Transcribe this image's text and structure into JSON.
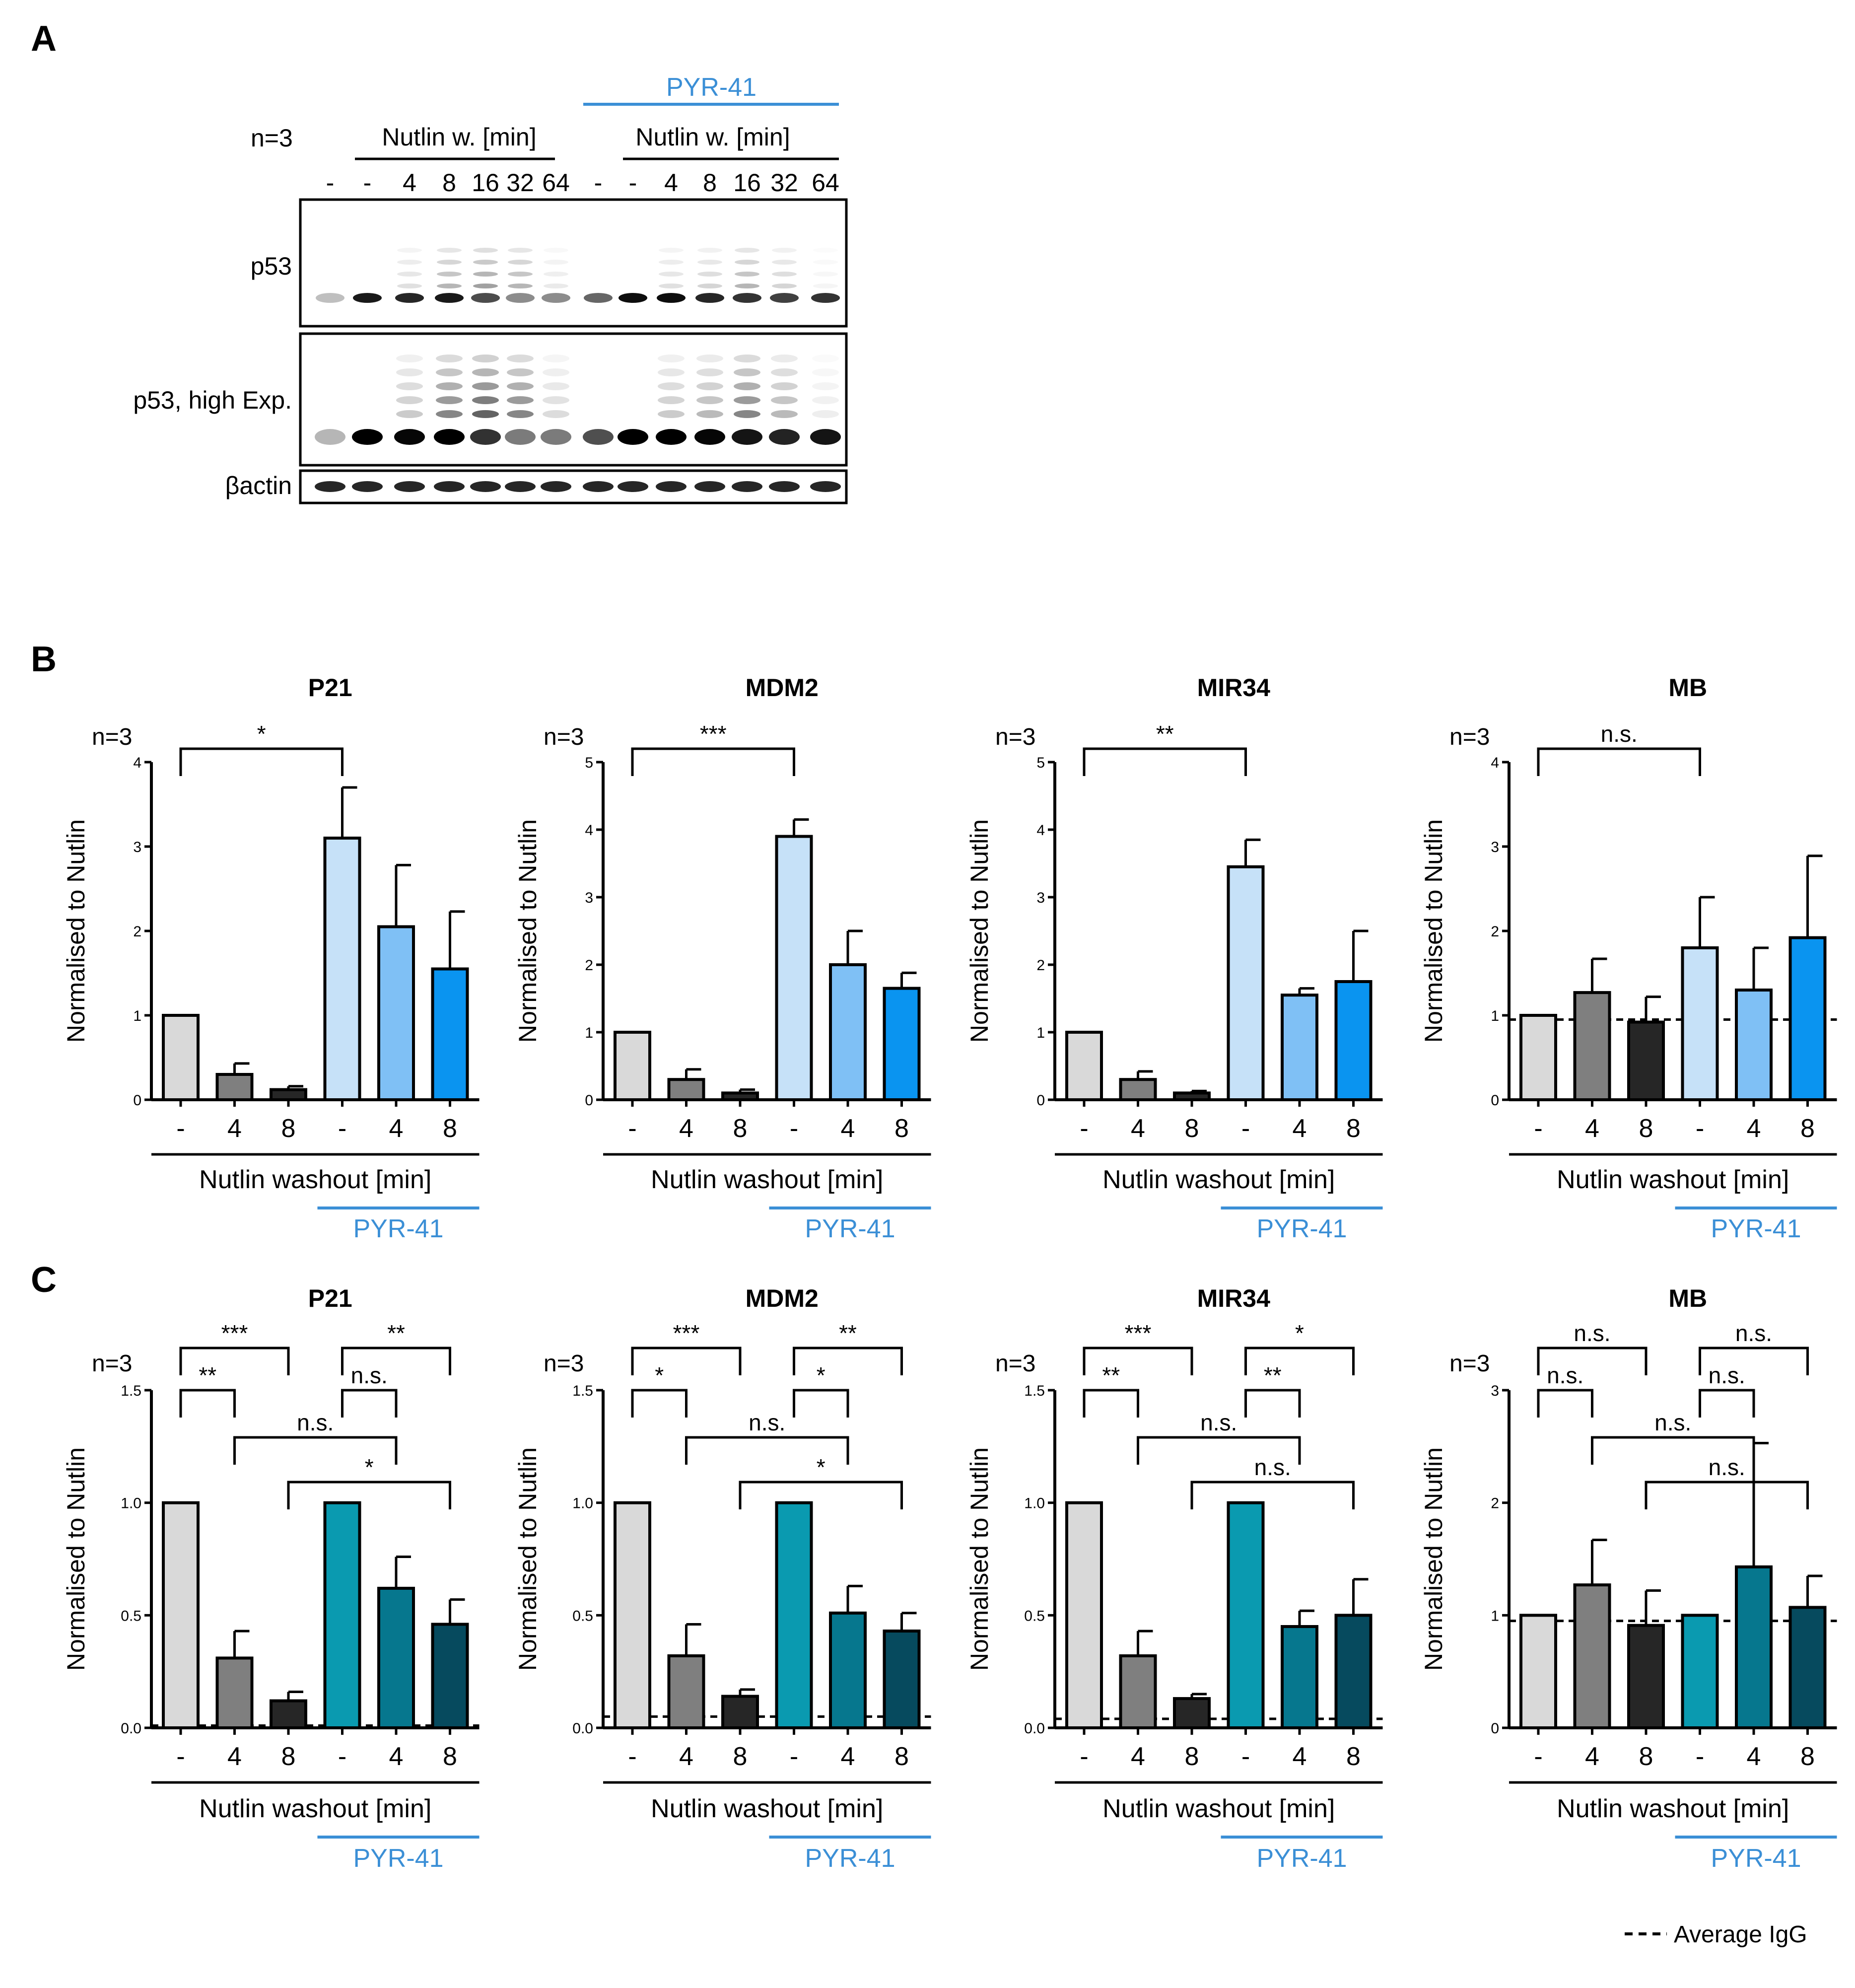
{
  "panels": {
    "a": "A",
    "b": "B",
    "c": "C"
  },
  "blot": {
    "n_label": "n=3",
    "pyr_label": "PYR-41",
    "group_label": "Nutlin w. [min]",
    "lanes": [
      "-",
      "-",
      "4",
      "8",
      "16",
      "32",
      "64",
      "-",
      "-",
      "4",
      "8",
      "16",
      "32",
      "64"
    ],
    "row_labels": [
      "p53",
      "p53, high Exp.",
      "βactin"
    ]
  },
  "common": {
    "n_label": "n=3",
    "ylabel": "Normalised to Nutlin",
    "xlabel": "Nutlin washout [min]",
    "pyr_label": "PYR-41",
    "categories": [
      "-",
      "4",
      "8",
      "-",
      "4",
      "8"
    ]
  },
  "legend": {
    "label": "Average IgG"
  },
  "colors": {
    "b": [
      "#d9d9d9",
      "#7f7f7f",
      "#262626",
      "#c6e1f8",
      "#7fc0f5",
      "#0a94f0"
    ],
    "c": [
      "#d9d9d9",
      "#7f7f7f",
      "#262626",
      "#0a9ab0",
      "#06778e",
      "#064a5e"
    ],
    "pyr_line": "#3b8fd6"
  },
  "chart_data": [
    {
      "type": "bar",
      "panel": "B",
      "title": "P21",
      "ylim": [
        0,
        4
      ],
      "yticks": [
        "0",
        "1",
        "2",
        "3",
        "4"
      ],
      "values": [
        1.0,
        0.3,
        0.12,
        3.1,
        2.05,
        1.55
      ],
      "errors": [
        0,
        0.13,
        0.04,
        0.6,
        0.73,
        0.68
      ],
      "igg": null,
      "sig": [
        {
          "label": "*",
          "from": 0,
          "to": 3
        }
      ]
    },
    {
      "type": "bar",
      "panel": "B",
      "title": "MDM2",
      "ylim": [
        0,
        5
      ],
      "yticks": [
        "0",
        "1",
        "2",
        "3",
        "4",
        "5"
      ],
      "values": [
        1.0,
        0.3,
        0.1,
        3.9,
        2.0,
        1.65
      ],
      "errors": [
        0,
        0.15,
        0.05,
        0.25,
        0.5,
        0.23
      ],
      "igg": 0.0,
      "sig": [
        {
          "label": "***",
          "from": 0,
          "to": 3
        }
      ]
    },
    {
      "type": "bar",
      "panel": "B",
      "title": "MIR34",
      "ylim": [
        0,
        5
      ],
      "yticks": [
        "0",
        "1",
        "2",
        "3",
        "4",
        "5"
      ],
      "values": [
        1.0,
        0.3,
        0.1,
        3.45,
        1.55,
        1.75
      ],
      "errors": [
        0,
        0.12,
        0.03,
        0.4,
        0.1,
        0.75
      ],
      "igg": 0.0,
      "sig": [
        {
          "label": "**",
          "from": 0,
          "to": 3
        }
      ]
    },
    {
      "type": "bar",
      "panel": "B",
      "title": "MB",
      "ylim": [
        0,
        4
      ],
      "yticks": [
        "0",
        "1",
        "2",
        "3",
        "4"
      ],
      "values": [
        1.0,
        1.27,
        0.92,
        1.8,
        1.3,
        1.92
      ],
      "errors": [
        0,
        0.4,
        0.3,
        0.6,
        0.5,
        0.97
      ],
      "igg": 0.95,
      "sig": [
        {
          "label": "n.s.",
          "from": 0,
          "to": 3
        }
      ]
    },
    {
      "type": "bar",
      "panel": "C",
      "title": "P21",
      "ylim": [
        0,
        1.5
      ],
      "yticks": [
        "0.0",
        "0.5",
        "1.0",
        "1.5"
      ],
      "values": [
        1.0,
        0.31,
        0.12,
        1.0,
        0.62,
        0.46
      ],
      "errors": [
        0,
        0.12,
        0.04,
        0,
        0.14,
        0.11
      ],
      "igg": 0.01,
      "sig": [
        {
          "label": "***",
          "from": 0,
          "to": 2,
          "level": 5
        },
        {
          "label": "**",
          "from": 0,
          "to": 1,
          "level": 4
        },
        {
          "label": "**",
          "from": 3,
          "to": 5,
          "level": 5
        },
        {
          "label": "n.s.",
          "from": 3,
          "to": 4,
          "level": 4
        },
        {
          "label": "n.s.",
          "from": 1,
          "to": 4,
          "level": 3
        },
        {
          "label": "*",
          "from": 2,
          "to": 5,
          "level": 2
        }
      ]
    },
    {
      "type": "bar",
      "panel": "C",
      "title": "MDM2",
      "ylim": [
        0,
        1.5
      ],
      "yticks": [
        "0.0",
        "0.5",
        "1.0",
        "1.5"
      ],
      "values": [
        1.0,
        0.32,
        0.14,
        1.0,
        0.51,
        0.43
      ],
      "errors": [
        0,
        0.14,
        0.03,
        0,
        0.12,
        0.08
      ],
      "igg": 0.05,
      "sig": [
        {
          "label": "***",
          "from": 0,
          "to": 2,
          "level": 5
        },
        {
          "label": "*",
          "from": 0,
          "to": 1,
          "level": 4
        },
        {
          "label": "**",
          "from": 3,
          "to": 5,
          "level": 5
        },
        {
          "label": "*",
          "from": 3,
          "to": 4,
          "level": 4
        },
        {
          "label": "n.s.",
          "from": 1,
          "to": 4,
          "level": 3
        },
        {
          "label": "*",
          "from": 2,
          "to": 5,
          "level": 2
        }
      ]
    },
    {
      "type": "bar",
      "panel": "C",
      "title": "MIR34",
      "ylim": [
        0,
        1.5
      ],
      "yticks": [
        "0.0",
        "0.5",
        "1.0",
        "1.5"
      ],
      "values": [
        1.0,
        0.32,
        0.13,
        1.0,
        0.45,
        0.5
      ],
      "errors": [
        0,
        0.11,
        0.02,
        0,
        0.07,
        0.16
      ],
      "igg": 0.04,
      "sig": [
        {
          "label": "***",
          "from": 0,
          "to": 2,
          "level": 5
        },
        {
          "label": "**",
          "from": 0,
          "to": 1,
          "level": 4
        },
        {
          "label": "*",
          "from": 3,
          "to": 5,
          "level": 5
        },
        {
          "label": "**",
          "from": 3,
          "to": 4,
          "level": 4
        },
        {
          "label": "n.s.",
          "from": 1,
          "to": 4,
          "level": 3
        },
        {
          "label": "n.s.",
          "from": 2,
          "to": 5,
          "level": 2
        }
      ]
    },
    {
      "type": "bar",
      "panel": "C",
      "title": "MB",
      "ylim": [
        0,
        3
      ],
      "yticks": [
        "0",
        "1",
        "2",
        "3"
      ],
      "values": [
        1.0,
        1.27,
        0.91,
        1.0,
        1.43,
        1.07
      ],
      "errors": [
        0,
        0.4,
        0.31,
        0,
        1.1,
        0.28
      ],
      "igg": 0.95,
      "sig": [
        {
          "label": "n.s.",
          "from": 0,
          "to": 2,
          "level": 5
        },
        {
          "label": "n.s.",
          "from": 0,
          "to": 1,
          "level": 4
        },
        {
          "label": "n.s.",
          "from": 3,
          "to": 5,
          "level": 5
        },
        {
          "label": "n.s.",
          "from": 3,
          "to": 4,
          "level": 4
        },
        {
          "label": "n.s.",
          "from": 1,
          "to": 4,
          "level": 3
        },
        {
          "label": "n.s.",
          "from": 2,
          "to": 5,
          "level": 2
        }
      ]
    }
  ]
}
